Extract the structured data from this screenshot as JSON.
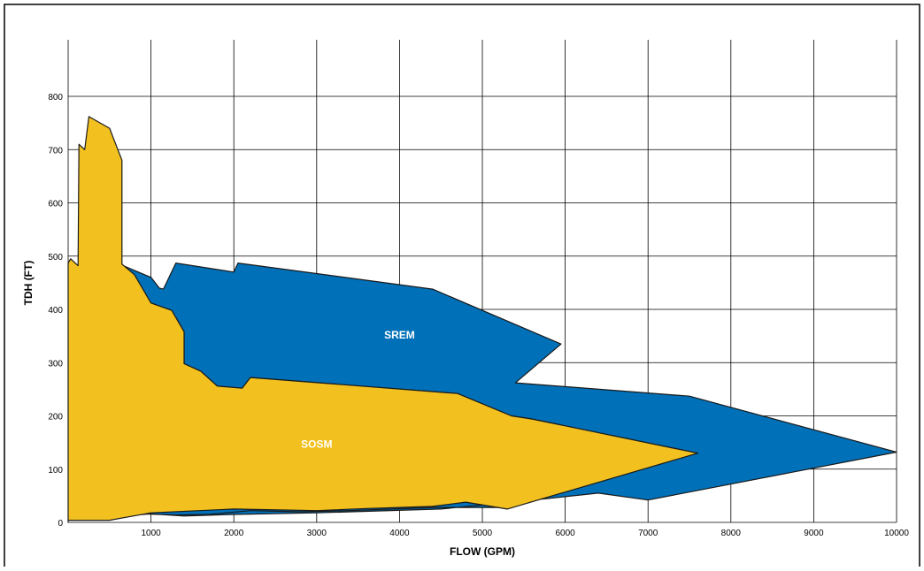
{
  "chart_data": {
    "type": "area",
    "xlabel": "FLOW (GPM)",
    "ylabel": "TDH (FT)",
    "xlim": [
      0,
      10000
    ],
    "ylim": [
      0,
      850
    ],
    "x_ticks": [
      "1000",
      "2000",
      "3000",
      "4000",
      "5000",
      "6000",
      "7000",
      "8000",
      "9000",
      "10000"
    ],
    "y_ticks": [
      "0",
      "100",
      "200",
      "300",
      "400",
      "500",
      "600",
      "700",
      "800"
    ],
    "x_tick_values": [
      1000,
      2000,
      3000,
      4000,
      5000,
      6000,
      7000,
      8000,
      9000,
      10000
    ],
    "y_tick_values": [
      0,
      100,
      200,
      300,
      400,
      500,
      600,
      700,
      800
    ],
    "grid": true,
    "series": [
      {
        "name": "SREM",
        "color": "#0070b8",
        "label_at": [
          4000,
          345
        ],
        "points": [
          [
            620,
            485
          ],
          [
            1000,
            460
          ],
          [
            1100,
            440
          ],
          [
            1150,
            438
          ],
          [
            1300,
            487
          ],
          [
            2000,
            470
          ],
          [
            2050,
            487
          ],
          [
            4400,
            438
          ],
          [
            5950,
            335
          ],
          [
            5400,
            262
          ],
          [
            7500,
            237
          ],
          [
            10000,
            132
          ],
          [
            7000,
            42
          ],
          [
            6400,
            55
          ],
          [
            5800,
            45
          ],
          [
            4500,
            25
          ],
          [
            3000,
            18
          ],
          [
            2000,
            15
          ],
          [
            1400,
            12
          ],
          [
            1000,
            16
          ],
          [
            800,
            14
          ],
          [
            1000,
            412
          ],
          [
            1250,
            398
          ],
          [
            1400,
            358
          ],
          [
            1400,
            298
          ],
          [
            1600,
            284
          ],
          [
            1800,
            256
          ],
          [
            2100,
            252
          ],
          [
            2200,
            272
          ],
          [
            4700,
            242
          ],
          [
            5350,
            200
          ],
          [
            5600,
            194
          ],
          [
            7600,
            130
          ],
          [
            5200,
            28
          ],
          [
            4400,
            28
          ],
          [
            3400,
            22
          ],
          [
            2800,
            20
          ],
          [
            2200,
            22
          ],
          [
            1700,
            15
          ],
          [
            1300,
            14
          ],
          [
            900,
            16
          ],
          [
            650,
            485
          ]
        ]
      },
      {
        "name": "SOSM",
        "color": "#f2c11f",
        "label_at": [
          3000,
          140
        ],
        "points": [
          [
            0,
            0
          ],
          [
            0,
            487
          ],
          [
            30,
            495
          ],
          [
            120,
            482
          ],
          [
            130,
            710
          ],
          [
            200,
            700
          ],
          [
            250,
            762
          ],
          [
            500,
            740
          ],
          [
            650,
            680
          ],
          [
            650,
            485
          ],
          [
            800,
            465
          ],
          [
            1000,
            412
          ],
          [
            1250,
            398
          ],
          [
            1400,
            358
          ],
          [
            1400,
            298
          ],
          [
            1600,
            284
          ],
          [
            1800,
            256
          ],
          [
            2100,
            252
          ],
          [
            2200,
            272
          ],
          [
            4700,
            242
          ],
          [
            5350,
            200
          ],
          [
            5600,
            194
          ],
          [
            7600,
            130
          ],
          [
            5300,
            25
          ],
          [
            4800,
            38
          ],
          [
            4400,
            30
          ],
          [
            4000,
            28
          ],
          [
            3600,
            26
          ],
          [
            3000,
            22
          ],
          [
            2000,
            25
          ],
          [
            1000,
            18
          ],
          [
            500,
            4
          ],
          [
            0,
            4
          ]
        ]
      }
    ]
  }
}
